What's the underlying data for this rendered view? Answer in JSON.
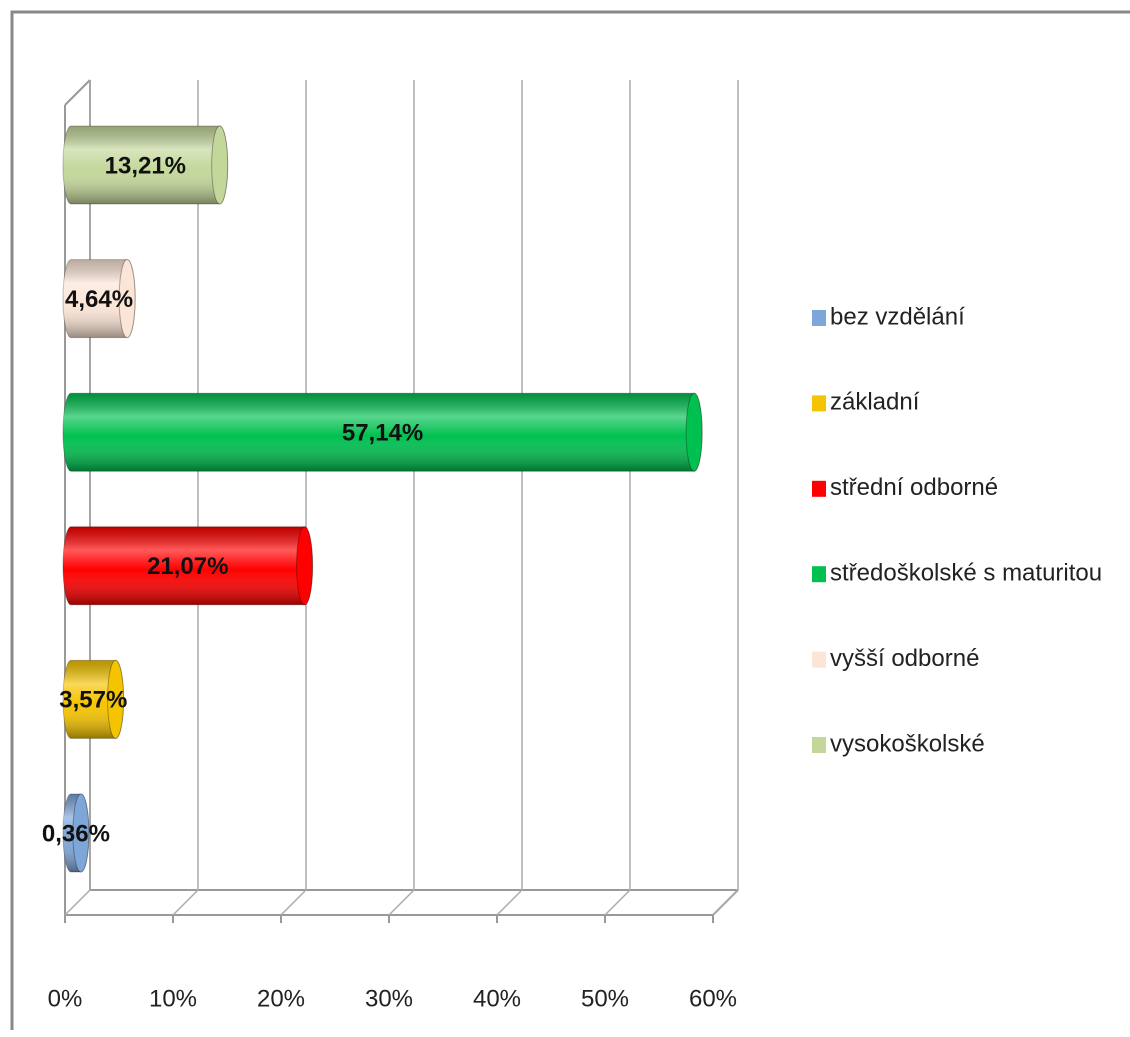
{
  "chart_data": {
    "type": "bar3d-horizontal",
    "categories": [
      "bez vzdělání",
      "základní",
      "střední odborné",
      "středoškolské s maturitou",
      "vyšší odborné",
      "vysokoškolské"
    ],
    "colors": [
      "#7ea6d8",
      "#f5c400",
      "#ff0000",
      "#00c050",
      "#fbe5d6",
      "#c4d79b"
    ],
    "values": [
      0.36,
      3.57,
      21.07,
      57.14,
      4.64,
      13.21
    ],
    "value_labels": [
      "0,36%",
      "3,57%",
      "21,07%",
      "57,14%",
      "4,64%",
      "13,21%"
    ],
    "xlim": [
      0,
      60
    ],
    "xticks": [
      {
        "value": 0,
        "label": "0%"
      },
      {
        "value": 10,
        "label": "10%"
      },
      {
        "value": 20,
        "label": "20%"
      },
      {
        "value": 30,
        "label": "30%"
      },
      {
        "value": 40,
        "label": "40%"
      },
      {
        "value": 50,
        "label": "50%"
      },
      {
        "value": 60,
        "label": "60%"
      }
    ],
    "grid": true,
    "legend": "right"
  }
}
